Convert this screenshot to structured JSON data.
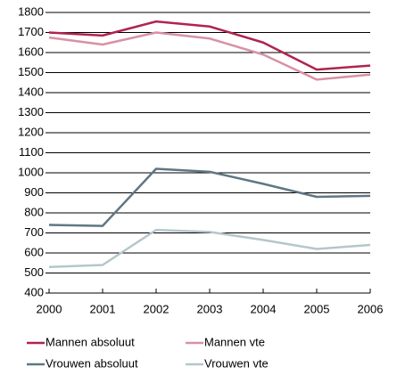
{
  "chart_data": {
    "type": "line",
    "x": [
      2000,
      2001,
      2002,
      2003,
      2004,
      2005,
      2006
    ],
    "xlim": [
      2000,
      2006
    ],
    "xticks": [
      2000,
      2001,
      2002,
      2003,
      2004,
      2005,
      2006
    ],
    "ylim": [
      400,
      1800
    ],
    "yticks": [
      400,
      500,
      600,
      700,
      800,
      900,
      1000,
      1100,
      1200,
      1300,
      1400,
      1500,
      1600,
      1700,
      1800
    ],
    "grid": true,
    "legend": "bottom",
    "series": [
      {
        "name": "Mannen absoluut",
        "color": "#b0244f",
        "values": [
          1700,
          1685,
          1755,
          1730,
          1650,
          1515,
          1535
        ]
      },
      {
        "name": "Mannen vte",
        "color": "#d891a6",
        "values": [
          1675,
          1640,
          1700,
          1670,
          1590,
          1465,
          1490
        ]
      },
      {
        "name": "Vrouwen absoluut",
        "color": "#5f7782",
        "values": [
          740,
          735,
          1020,
          1005,
          945,
          880,
          885
        ]
      },
      {
        "name": "Vrouwen vte",
        "color": "#b6c6cb",
        "values": [
          530,
          540,
          715,
          705,
          665,
          620,
          640
        ]
      }
    ]
  }
}
